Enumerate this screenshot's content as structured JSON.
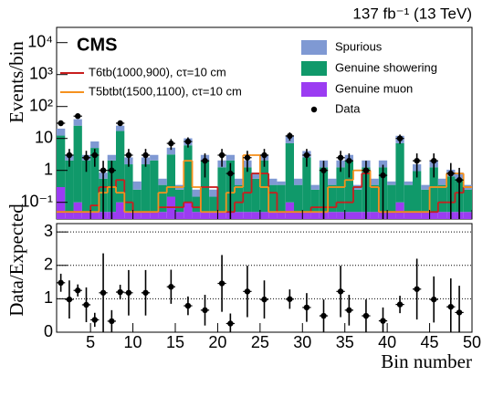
{
  "chart_data": {
    "type": "stacked-histogram",
    "title": "137 fb⁻¹ (13 TeV)",
    "experiment": "CMS",
    "y_label": "Events/bin",
    "x_label": "Bin number",
    "ratio_label": "Data/Expected",
    "log_y": true,
    "x": [
      1.5,
      2.5,
      3.5,
      4.5,
      5.5,
      6.5,
      7.5,
      8.5,
      9.5,
      10.5,
      11.5,
      12.5,
      13.5,
      14.5,
      15.5,
      16.5,
      17.5,
      18.5,
      19.5,
      20.5,
      21.5,
      22.5,
      23.5,
      24.5,
      25.5,
      26.5,
      27.5,
      28.5,
      29.5,
      30.5,
      31.5,
      32.5,
      33.5,
      34.5,
      35.5,
      36.5,
      37.5,
      38.5,
      39.5,
      40.5,
      41.5,
      42.5,
      43.5,
      44.5,
      45.5,
      46.5,
      47.5,
      48.5,
      49.5
    ],
    "xlim": [
      1,
      50
    ],
    "xticks": [
      5,
      10,
      15,
      20,
      25,
      30,
      35,
      40,
      45,
      50
    ],
    "ylim": [
      0.03,
      30000
    ],
    "yticks": [
      {
        "value": 0.1,
        "label": "10⁻¹"
      },
      1,
      10,
      {
        "value": 100,
        "label": "10²"
      },
      {
        "value": 1000,
        "label": "10³"
      },
      {
        "value": 10000,
        "label": "10⁴"
      }
    ],
    "ratio_ylim": [
      0,
      3.25
    ],
    "ratio_yticks": [
      0,
      1,
      2,
      3
    ],
    "series": [
      {
        "name": "Genuine muon",
        "color": "#9b3cf2",
        "values": [
          0.3,
          0.05,
          0.1,
          0.05,
          0.05,
          0.05,
          0.05,
          0.1,
          0.05,
          0.05,
          0.05,
          0.05,
          0.05,
          0.15,
          0.05,
          0.1,
          0.05,
          0.05,
          0.05,
          0.05,
          0.05,
          0.05,
          0.05,
          0.05,
          0.05,
          0.05,
          0.05,
          0.1,
          0.05,
          0.05,
          0.05,
          0.05,
          0.05,
          0.05,
          0.05,
          0.05,
          0.05,
          0.05,
          0.05,
          0.05,
          0.1,
          0.05,
          0.05,
          0.05,
          0.05,
          0.05,
          0.05,
          0.05,
          0.05
        ]
      },
      {
        "name": "Genuine showering",
        "color": "#10996a",
        "values": [
          12,
          2,
          25,
          2,
          5,
          0.5,
          2,
          17,
          1.5,
          0.2,
          1.5,
          2,
          0.3,
          3,
          0.2,
          6,
          0.1,
          2,
          0.1,
          1.2,
          2,
          0.3,
          1.2,
          0.5,
          2,
          0.3,
          0.3,
          7,
          0.3,
          2.5,
          0.2,
          1.2,
          0.3,
          1.2,
          2,
          0.2,
          1.2,
          0.3,
          1.2,
          0.3,
          7,
          0.3,
          0.9,
          0.2,
          1.2,
          0.3,
          0.6,
          0.5,
          0.2
        ]
      },
      {
        "name": "Spurious",
        "color": "#7f99d3",
        "values": [
          8,
          1,
          15,
          1,
          3,
          0.3,
          1,
          8,
          1,
          0.2,
          1,
          1,
          0.2,
          2,
          0.1,
          4,
          0.1,
          1,
          0.1,
          0.8,
          1,
          0.2,
          0.8,
          0.3,
          1,
          0.2,
          0.1,
          5,
          0.2,
          1.5,
          0.1,
          0.8,
          0.2,
          0.8,
          1,
          0.1,
          0.8,
          0.2,
          0.8,
          0.1,
          5,
          0.1,
          0.6,
          0.1,
          0.8,
          0.2,
          0.4,
          0.3,
          0.1
        ]
      }
    ],
    "signals": [
      {
        "name": "T6tb(1000,900), cτ=10 cm",
        "color": "#c81e1e",
        "values": [
          0.05,
          0.05,
          0.05,
          0.05,
          0.08,
          0.3,
          0.3,
          0.5,
          0.1,
          0.05,
          0.05,
          0.05,
          0.07,
          0.07,
          0.07,
          0.1,
          0.07,
          0.3,
          0.3,
          0.05,
          0.05,
          0.1,
          0.2,
          0.8,
          0.8,
          0.2,
          0.05,
          0.05,
          0.05,
          0.05,
          0.07,
          0.07,
          0.07,
          0.1,
          0.1,
          0.3,
          0.8,
          0.3,
          0.05,
          0.05,
          0.05,
          0.05,
          0.05,
          0.05,
          0.05,
          0.1,
          0.1,
          0.2,
          0.3
        ]
      },
      {
        "name": "T5btbt(1500,1100), cτ=10 cm",
        "color": "#f5911e",
        "values": [
          0.05,
          0.05,
          0.05,
          0.05,
          0.05,
          0.2,
          0.3,
          0.2,
          0.05,
          0.05,
          0.05,
          0.05,
          0.2,
          0.3,
          0.3,
          2,
          0.3,
          0.05,
          0.05,
          0.05,
          0.2,
          0.3,
          3,
          3,
          0.3,
          0.05,
          0.05,
          0.05,
          0.05,
          0.05,
          0.05,
          0.05,
          0.3,
          0.3,
          0.5,
          1,
          1,
          0.3,
          0.05,
          0.05,
          0.05,
          0.05,
          0.05,
          0.05,
          0.3,
          0.3,
          0.8,
          0.8,
          0.3
        ]
      }
    ],
    "data": {
      "name": "Data",
      "values": [
        30,
        3,
        50,
        2.5,
        3,
        1,
        1,
        30,
        3,
        null,
        3,
        null,
        null,
        7,
        null,
        8,
        null,
        2,
        null,
        3,
        0.8,
        null,
        2.5,
        null,
        3,
        null,
        null,
        12,
        null,
        3,
        null,
        1,
        null,
        2.5,
        2,
        null,
        1,
        null,
        0.7,
        null,
        10,
        null,
        2,
        null,
        2,
        null,
        0.8,
        0.5,
        null
      ],
      "errors": [
        5.5,
        1.7,
        7.1,
        1.6,
        1.7,
        1,
        1,
        5.5,
        1.7,
        null,
        1.7,
        null,
        null,
        2.6,
        null,
        2.8,
        null,
        1.4,
        null,
        1.7,
        0.9,
        null,
        1.6,
        null,
        1.7,
        null,
        null,
        3.5,
        null,
        1.7,
        null,
        1,
        null,
        1.6,
        1.4,
        null,
        1,
        null,
        0.8,
        null,
        3.2,
        null,
        1.4,
        null,
        1.4,
        null,
        0.9,
        0.7,
        null
      ],
      "ratio": [
        1.48,
        0.98,
        1.25,
        0.82,
        0.37,
        1.18,
        0.33,
        1.2,
        1.18,
        null,
        1.18,
        null,
        null,
        1.36,
        null,
        0.79,
        null,
        0.66,
        null,
        1.46,
        0.26,
        null,
        1.22,
        null,
        0.98,
        null,
        null,
        0.99,
        null,
        0.74,
        null,
        0.49,
        null,
        1.22,
        0.66,
        null,
        0.49,
        null,
        0.34,
        null,
        0.83,
        null,
        1.29,
        null,
        0.98,
        null,
        0.76,
        0.59,
        null
      ],
      "ratio_errors": [
        0.27,
        0.57,
        0.18,
        0.52,
        0.21,
        1.18,
        0.33,
        0.22,
        0.68,
        null,
        0.68,
        null,
        null,
        0.51,
        null,
        0.28,
        null,
        0.46,
        null,
        0.85,
        0.3,
        null,
        0.77,
        null,
        0.57,
        null,
        null,
        0.29,
        null,
        0.43,
        null,
        0.49,
        null,
        0.77,
        0.46,
        null,
        0.49,
        null,
        0.4,
        null,
        0.26,
        null,
        0.91,
        null,
        0.69,
        null,
        0.85,
        0.8,
        null
      ]
    }
  }
}
